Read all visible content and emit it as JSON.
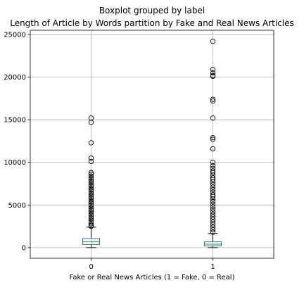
{
  "chart_data": {
    "type": "boxplot",
    "suptitle": "Boxplot grouped by label",
    "title": "Length of Article by Words partition by Fake and Real News Articles",
    "xlabel": "Fake or Real News Articles (1 = Fake, 0 = Real)",
    "ylabel": "",
    "categories": [
      "0",
      "1"
    ],
    "ylim": [
      -1250,
      25500
    ],
    "yticks": [
      0,
      5000,
      10000,
      15000,
      20000,
      25000
    ],
    "grid": true,
    "colors": {
      "box": "#1f77b4",
      "median": "#2ca02c",
      "whisker": "#000000",
      "outlier": "#000000",
      "grid": "#b0b0b0"
    },
    "boxes": [
      {
        "category": "0",
        "whislo": 0,
        "q1": 370,
        "median": 680,
        "q3": 1070,
        "whishi": 2400,
        "outliers": [
          15200,
          14700,
          12300,
          10500,
          10100,
          8800,
          8600,
          8400,
          8200,
          8000,
          7800,
          7600,
          7400,
          7200,
          7000,
          6800,
          6600,
          6400,
          6200,
          6000,
          5800,
          5600,
          5400,
          5200,
          5000,
          4800,
          4600,
          4400,
          4200,
          4000,
          3800,
          3600,
          3400,
          3200,
          3000,
          2800,
          2600,
          2500
        ]
      },
      {
        "category": "1",
        "whislo": 0,
        "q1": 200,
        "median": 400,
        "q3": 680,
        "whishi": 1650,
        "outliers": [
          24200,
          20900,
          20500,
          20200,
          20100,
          17400,
          17200,
          15200,
          12900,
          12700,
          11600,
          10000,
          9600,
          9300,
          9000,
          8800,
          8500,
          8200,
          8000,
          7700,
          7400,
          7100,
          6800,
          6500,
          6200,
          6000,
          5700,
          5400,
          5100,
          4800,
          4500,
          4200,
          3900,
          3600,
          3300,
          3000,
          2700,
          2400,
          2100,
          1800
        ]
      }
    ]
  }
}
